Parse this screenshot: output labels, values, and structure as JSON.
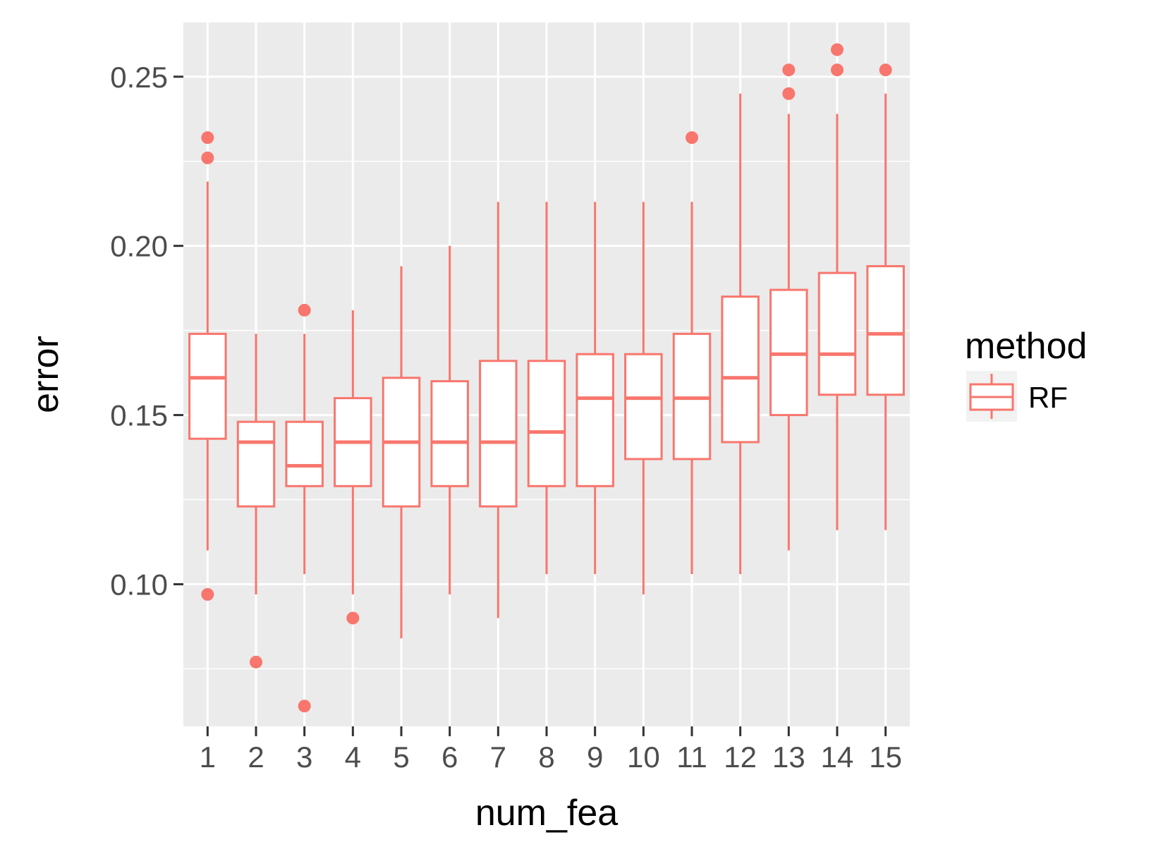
{
  "chart_data": {
    "type": "boxplot",
    "xlabel": "num_fea",
    "ylabel": "error",
    "ylim": [
      0.058,
      0.266
    ],
    "yticks": [
      0.1,
      0.15,
      0.2,
      0.25
    ],
    "ytick_labels": [
      "0.10",
      "0.15",
      "0.20",
      "0.25"
    ],
    "categories": [
      "1",
      "2",
      "3",
      "4",
      "5",
      "6",
      "7",
      "8",
      "9",
      "10",
      "11",
      "12",
      "13",
      "14",
      "15"
    ],
    "legend": {
      "title": "method",
      "placement": "right",
      "entries": [
        {
          "label": "RF",
          "color": "#F8766D"
        }
      ]
    },
    "grid": true,
    "series": [
      {
        "name": "RF",
        "color": "#F8766D",
        "boxes": [
          {
            "q1": 0.143,
            "median": 0.161,
            "q3": 0.174,
            "whisker_low": 0.11,
            "whisker_high": 0.219,
            "outliers": [
              0.097,
              0.226,
              0.232
            ]
          },
          {
            "q1": 0.123,
            "median": 0.142,
            "q3": 0.148,
            "whisker_low": 0.097,
            "whisker_high": 0.174,
            "outliers": [
              0.077
            ]
          },
          {
            "q1": 0.129,
            "median": 0.135,
            "q3": 0.148,
            "whisker_low": 0.103,
            "whisker_high": 0.174,
            "outliers": [
              0.064,
              0.181
            ]
          },
          {
            "q1": 0.129,
            "median": 0.142,
            "q3": 0.155,
            "whisker_low": 0.097,
            "whisker_high": 0.181,
            "outliers": [
              0.09
            ]
          },
          {
            "q1": 0.123,
            "median": 0.142,
            "q3": 0.161,
            "whisker_low": 0.084,
            "whisker_high": 0.194,
            "outliers": []
          },
          {
            "q1": 0.129,
            "median": 0.142,
            "q3": 0.16,
            "whisker_low": 0.097,
            "whisker_high": 0.2,
            "outliers": []
          },
          {
            "q1": 0.123,
            "median": 0.142,
            "q3": 0.166,
            "whisker_low": 0.09,
            "whisker_high": 0.213,
            "outliers": []
          },
          {
            "q1": 0.129,
            "median": 0.145,
            "q3": 0.166,
            "whisker_low": 0.103,
            "whisker_high": 0.213,
            "outliers": []
          },
          {
            "q1": 0.129,
            "median": 0.155,
            "q3": 0.168,
            "whisker_low": 0.103,
            "whisker_high": 0.213,
            "outliers": []
          },
          {
            "q1": 0.137,
            "median": 0.155,
            "q3": 0.168,
            "whisker_low": 0.097,
            "whisker_high": 0.213,
            "outliers": []
          },
          {
            "q1": 0.137,
            "median": 0.155,
            "q3": 0.174,
            "whisker_low": 0.103,
            "whisker_high": 0.213,
            "outliers": [
              0.232
            ]
          },
          {
            "q1": 0.142,
            "median": 0.161,
            "q3": 0.185,
            "whisker_low": 0.103,
            "whisker_high": 0.245,
            "outliers": []
          },
          {
            "q1": 0.15,
            "median": 0.168,
            "q3": 0.187,
            "whisker_low": 0.11,
            "whisker_high": 0.239,
            "outliers": [
              0.245,
              0.252
            ]
          },
          {
            "q1": 0.156,
            "median": 0.168,
            "q3": 0.192,
            "whisker_low": 0.116,
            "whisker_high": 0.239,
            "outliers": [
              0.252,
              0.258
            ]
          },
          {
            "q1": 0.156,
            "median": 0.174,
            "q3": 0.194,
            "whisker_low": 0.116,
            "whisker_high": 0.245,
            "outliers": [
              0.252
            ]
          }
        ]
      }
    ]
  }
}
